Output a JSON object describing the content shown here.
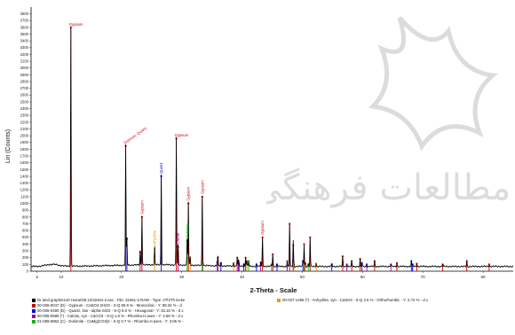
{
  "watermark": {
    "text": "مطالعات فرهنگی",
    "color": "#d9d9d9"
  },
  "chart_data": {
    "type": "line",
    "title": "",
    "xlabel": "2-Theta - Scale",
    "ylabel": "Lin (Counts)",
    "xlim": [
      5,
      85
    ],
    "ylim": [
      0,
      3900
    ],
    "xticks": [
      "6",
      "10",
      "20",
      "30",
      "40",
      "50",
      "60",
      "70",
      "80"
    ],
    "yticks": [
      0,
      100,
      200,
      300,
      400,
      500,
      600,
      700,
      800,
      900,
      1000,
      1100,
      1200,
      1300,
      1400,
      1500,
      1600,
      1700,
      1800,
      1900,
      2000,
      2100,
      2200,
      2300,
      2400,
      2500,
      2600,
      2700,
      2800,
      2900,
      3000,
      3100,
      3200,
      3300,
      3400,
      3500,
      3600,
      3700,
      3800
    ],
    "series": [
      {
        "name": "Gypsum",
        "color": "#cc0000",
        "peaks": [
          [
            11.6,
            3600
          ],
          [
            20.7,
            1850
          ],
          [
            23.4,
            800
          ],
          [
            29.1,
            1960
          ],
          [
            31.1,
            1000
          ],
          [
            33.4,
            1100
          ],
          [
            43.4,
            500
          ],
          [
            47.9,
            700
          ],
          [
            50.3,
            400
          ],
          [
            56.7,
            220
          ],
          [
            48.5,
            380
          ],
          [
            51.3,
            500
          ],
          [
            39.2,
            200
          ],
          [
            36.0,
            200
          ],
          [
            40.6,
            200
          ],
          [
            45.1,
            250
          ],
          [
            58.2,
            150
          ],
          [
            59.6,
            180
          ],
          [
            62.0,
            150
          ],
          [
            65.7,
            120
          ],
          [
            69.0,
            110
          ],
          [
            73.3,
            100
          ],
          [
            77.3,
            150
          ],
          [
            81.0,
            100
          ]
        ]
      },
      {
        "name": "Quartz",
        "color": "#0000dd",
        "peaks": [
          [
            20.9,
            480
          ],
          [
            26.6,
            1400
          ],
          [
            36.5,
            120
          ],
          [
            39.5,
            110
          ],
          [
            40.3,
            100
          ],
          [
            42.4,
            100
          ],
          [
            45.8,
            100
          ],
          [
            50.1,
            150
          ],
          [
            54.9,
            100
          ],
          [
            59.9,
            120
          ],
          [
            68.1,
            150
          ],
          [
            68.3,
            100
          ]
        ]
      },
      {
        "name": "Calcite",
        "color": "#990099",
        "peaks": [
          [
            23.1,
            280
          ],
          [
            29.4,
            360
          ],
          [
            35.9,
            130
          ],
          [
            39.4,
            150
          ],
          [
            43.1,
            130
          ],
          [
            47.5,
            150
          ],
          [
            48.5,
            140
          ],
          [
            57.4,
            100
          ],
          [
            60.7,
            100
          ],
          [
            64.7,
            100
          ]
        ]
      },
      {
        "name": "Dolomite",
        "color": "#00bb00",
        "peaks": [
          [
            30.9,
            450
          ],
          [
            33.5,
            110
          ],
          [
            41.1,
            150
          ],
          [
            44.9,
            100
          ],
          [
            50.5,
            120
          ],
          [
            51.0,
            100
          ]
        ]
      },
      {
        "name": "Anhydrite",
        "color": "#ee9900",
        "peaks": [
          [
            25.5,
            330
          ],
          [
            31.4,
            200
          ],
          [
            38.6,
            120
          ],
          [
            40.8,
            150
          ],
          [
            48.6,
            100
          ],
          [
            52.3,
            110
          ]
        ]
      }
    ],
    "peak_labels": [
      {
        "x": 11.6,
        "y": 3600,
        "text": "Gypsum",
        "color": "#cc0000",
        "orient": "h"
      },
      {
        "x": 20.7,
        "y": 1850,
        "text": "Gypsum, Quartz",
        "color": "#cc0000",
        "orient": "r"
      },
      {
        "x": 29.1,
        "y": 1960,
        "text": "Gypsum",
        "color": "#cc0000",
        "orient": "h"
      },
      {
        "x": 23.4,
        "y": 800,
        "text": "Gypsum",
        "color": "#cc0000",
        "orient": "v"
      },
      {
        "x": 26.6,
        "y": 1400,
        "text": "Quartz",
        "color": "#0000dd",
        "orient": "v"
      },
      {
        "x": 31.1,
        "y": 1000,
        "text": "Gypsum",
        "color": "#cc0000",
        "orient": "v"
      },
      {
        "x": 33.4,
        "y": 1100,
        "text": "Gypsum",
        "color": "#cc0000",
        "orient": "v"
      },
      {
        "x": 43.4,
        "y": 500,
        "text": "Gypsum",
        "color": "#cc0000",
        "orient": "v"
      },
      {
        "x": 25.5,
        "y": 330,
        "text": "Anhydrite",
        "color": "#ee9900",
        "orient": "v"
      },
      {
        "x": 30.9,
        "y": 450,
        "text": "Dolomite",
        "color": "#00bb00",
        "orient": "v"
      },
      {
        "x": 29.4,
        "y": 360,
        "text": "Calcite",
        "color": "#990099",
        "orient": "v"
      }
    ]
  },
  "legend": {
    "header": "Dr land graphet140 Hazarl29.12\\32461-2.asc - File: 32461-2.RAW - Type: 2Th/Th locke",
    "items": [
      {
        "text": "00-006-0047 (D) - Gypsum - CaSO4·2H2O - S-Q 85.9 % - Monoclinic - Y: 88.34 % - d",
        "color": "#cc0000"
      },
      {
        "text": "00-005-0490 (D) - Quartz, low - alpha-SiO2 - S-Q 9.0 % - Hexagonal - Y: 33.15 % - d x",
        "color": "#0000dd"
      },
      {
        "text": "00-005-0586 (*) - Calcite, syn - CaCO3 - S-Q 1.8 % - Rhombo.H.axes - Y: 3.69 % - d x",
        "color": "#990099"
      },
      {
        "text": "01-089-5862 (C) - Dolomite - CaMg(CO3)2 - S-Q 0.7 % - Rhombo.H.axes - Y: 3.06 % -",
        "color": "#00bb00"
      },
      {
        "text": "00-037-1496 (*) - Anhydrite, syn - CaSO4 - S-Q 2.6 % - Orthorhombic - Y: 2.72 % - d x",
        "color": "#ee9900"
      }
    ]
  }
}
